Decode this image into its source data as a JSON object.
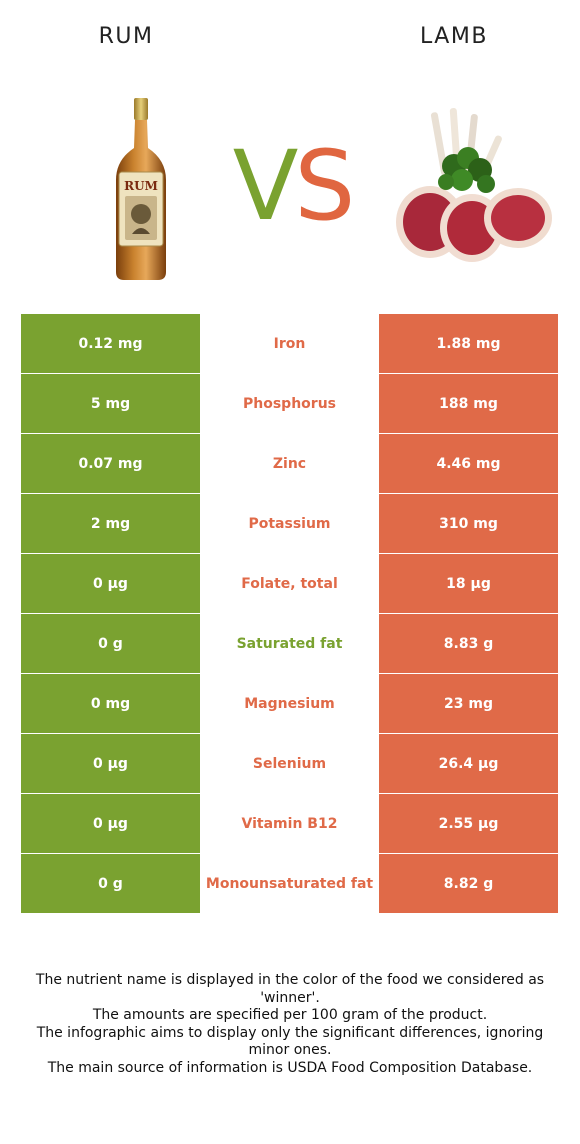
{
  "left_food": {
    "name": "RUM",
    "color": "#7aa230"
  },
  "right_food": {
    "name": "LAMB",
    "color": "#e06a48"
  },
  "vs": {
    "v": "V",
    "s": "S"
  },
  "rows": [
    {
      "left": "0.12 mg",
      "nutrient": "Iron",
      "right": "1.88 mg",
      "winner": "right"
    },
    {
      "left": "5 mg",
      "nutrient": "Phosphorus",
      "right": "188 mg",
      "winner": "right"
    },
    {
      "left": "0.07 mg",
      "nutrient": "Zinc",
      "right": "4.46 mg",
      "winner": "right"
    },
    {
      "left": "2 mg",
      "nutrient": "Potassium",
      "right": "310 mg",
      "winner": "right"
    },
    {
      "left": "0 µg",
      "nutrient": "Folate, total",
      "right": "18 µg",
      "winner": "right"
    },
    {
      "left": "0 g",
      "nutrient": "Saturated fat",
      "right": "8.83 g",
      "winner": "left"
    },
    {
      "left": "0 mg",
      "nutrient": "Magnesium",
      "right": "23 mg",
      "winner": "right"
    },
    {
      "left": "0 µg",
      "nutrient": "Selenium",
      "right": "26.4 µg",
      "winner": "right"
    },
    {
      "left": "0 µg",
      "nutrient": "Vitamin B12",
      "right": "2.55 µg",
      "winner": "right"
    },
    {
      "left": "0 g",
      "nutrient": "Monounsaturated fat",
      "right": "8.82 g",
      "winner": "right"
    }
  ],
  "footer": [
    "The nutrient name is displayed in the color of the food we considered as 'winner'.",
    "The amounts are specified per 100 gram of the product.",
    "The infographic aims to display only the significant differences, ignoring minor ones.",
    "The main source of information is USDA Food Composition Database."
  ]
}
